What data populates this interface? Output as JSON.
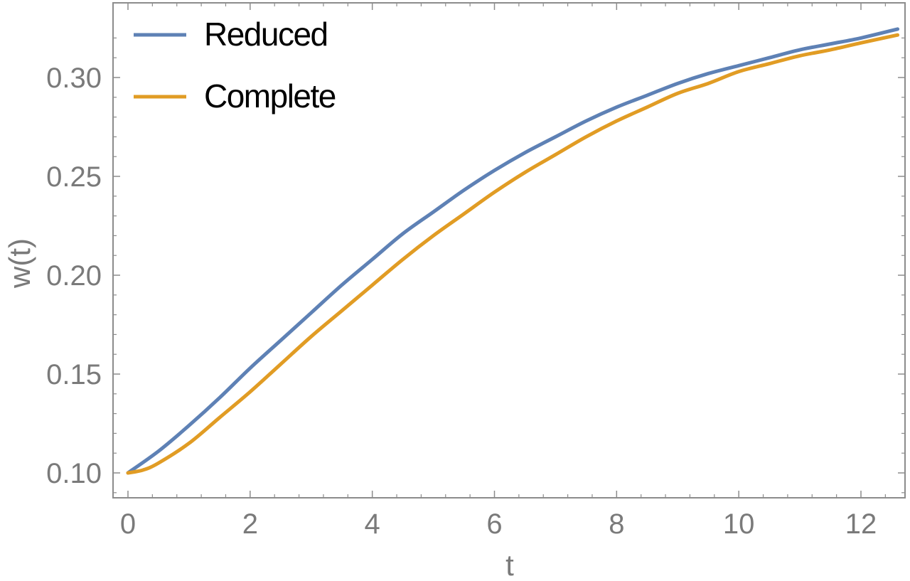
{
  "chart_data": {
    "type": "line",
    "title": "",
    "xlabel": "t",
    "ylabel": "w(t)",
    "xlim": [
      0,
      12.6
    ],
    "ylim": [
      0.09,
      0.327
    ],
    "x_ticks": [
      0,
      2,
      4,
      6,
      8,
      10,
      12
    ],
    "y_ticks": [
      0.1,
      0.15,
      0.2,
      0.25,
      0.3
    ],
    "x_tick_labels": [
      "0",
      "2",
      "4",
      "6",
      "8",
      "10",
      "12"
    ],
    "y_tick_labels": [
      "0.10",
      "0.15",
      "0.20",
      "0.25",
      "0.30"
    ],
    "grid": false,
    "legend_position": "top-left",
    "series": [
      {
        "name": "Reduced",
        "color": "#5e81b5",
        "points": [
          [
            0,
            0.1
          ],
          [
            0.5,
            0.111
          ],
          [
            1,
            0.124
          ],
          [
            1.5,
            0.138
          ],
          [
            2,
            0.153
          ],
          [
            2.5,
            0.167
          ],
          [
            3,
            0.181
          ],
          [
            3.5,
            0.195
          ],
          [
            4,
            0.208
          ],
          [
            4.5,
            0.221
          ],
          [
            5,
            0.232
          ],
          [
            5.5,
            0.243
          ],
          [
            6,
            0.253
          ],
          [
            6.5,
            0.262
          ],
          [
            7,
            0.27
          ],
          [
            7.5,
            0.278
          ],
          [
            8,
            0.285
          ],
          [
            8.5,
            0.291
          ],
          [
            9,
            0.297
          ],
          [
            9.5,
            0.302
          ],
          [
            10,
            0.306
          ],
          [
            10.5,
            0.31
          ],
          [
            11,
            0.314
          ],
          [
            11.5,
            0.317
          ],
          [
            12,
            0.32
          ],
          [
            12.6,
            0.3245
          ]
        ]
      },
      {
        "name": "Complete",
        "color": "#e19c24",
        "points": [
          [
            0,
            0.1
          ],
          [
            0.25,
            0.1015
          ],
          [
            0.5,
            0.105
          ],
          [
            1,
            0.115
          ],
          [
            1.5,
            0.128
          ],
          [
            2,
            0.141
          ],
          [
            2.5,
            0.155
          ],
          [
            3,
            0.169
          ],
          [
            3.5,
            0.182
          ],
          [
            4,
            0.195
          ],
          [
            4.5,
            0.208
          ],
          [
            5,
            0.22
          ],
          [
            5.5,
            0.231
          ],
          [
            6,
            0.242
          ],
          [
            6.5,
            0.252
          ],
          [
            7,
            0.261
          ],
          [
            7.5,
            0.27
          ],
          [
            8,
            0.278
          ],
          [
            8.5,
            0.285
          ],
          [
            9,
            0.292
          ],
          [
            9.5,
            0.297
          ],
          [
            10,
            0.303
          ],
          [
            10.5,
            0.307
          ],
          [
            11,
            0.311
          ],
          [
            11.5,
            0.314
          ],
          [
            12,
            0.3175
          ],
          [
            12.6,
            0.3215
          ]
        ]
      }
    ]
  }
}
